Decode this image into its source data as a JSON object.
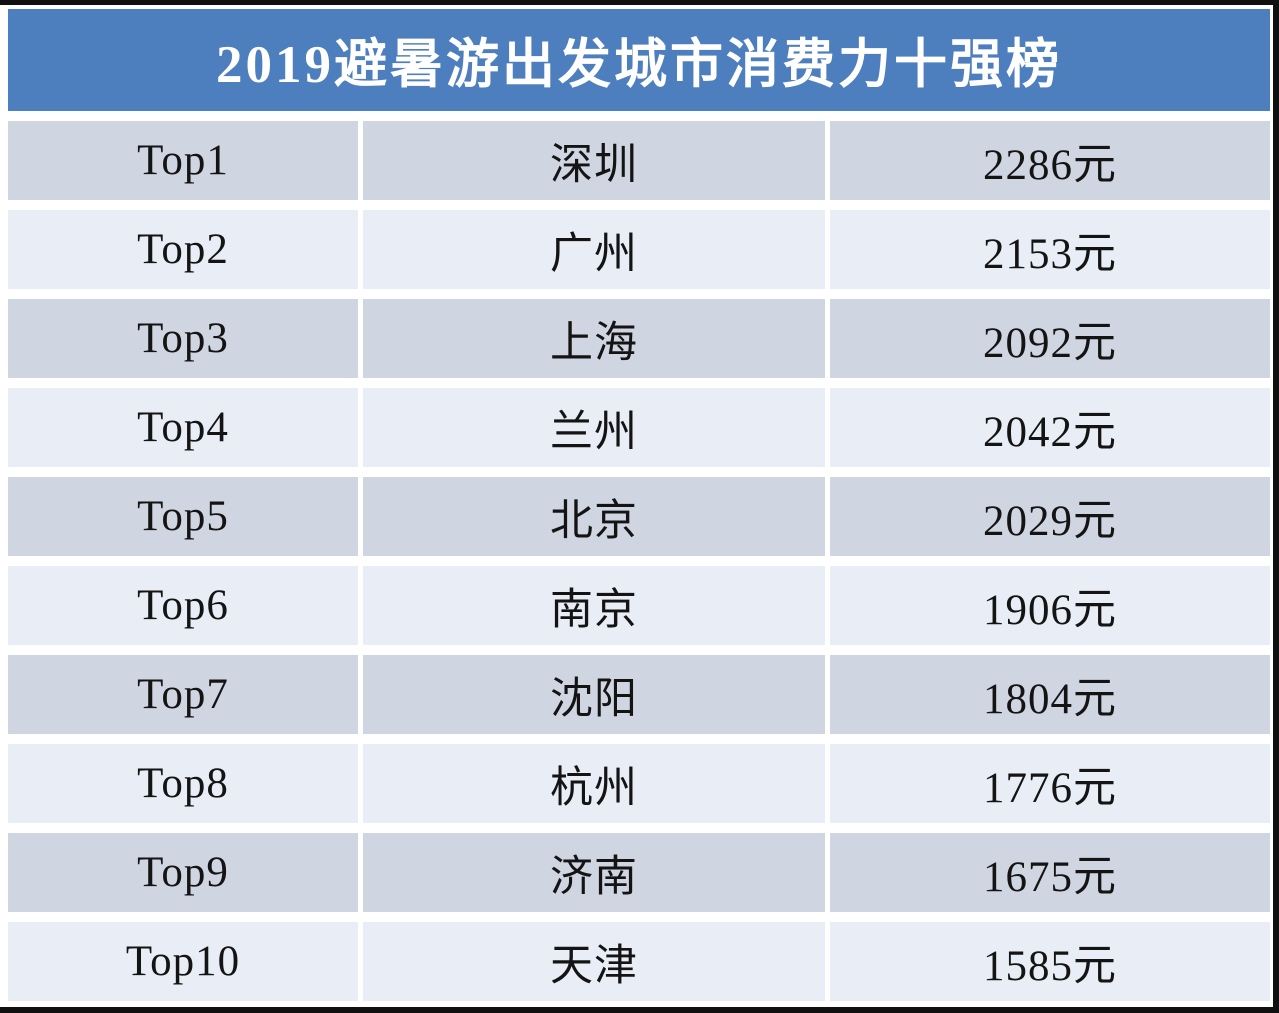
{
  "title": "2019避暑游出发城市消费力十强榜",
  "colors": {
    "header_bg": "#4d7ebd",
    "header_text": "#ffffff",
    "row_dark": "#d0d5e2",
    "row_light": "#e9edf5",
    "text": "#141414",
    "frame_border": "#101010"
  },
  "table": {
    "rows": [
      {
        "rank": "Top1",
        "city": "深圳",
        "price": "2286元"
      },
      {
        "rank": "Top2",
        "city": "广州",
        "price": "2153元"
      },
      {
        "rank": "Top3",
        "city": "上海",
        "price": "2092元"
      },
      {
        "rank": "Top4",
        "city": "兰州",
        "price": "2042元"
      },
      {
        "rank": "Top5",
        "city": "北京",
        "price": "2029元"
      },
      {
        "rank": "Top6",
        "city": "南京",
        "price": "1906元"
      },
      {
        "rank": "Top7",
        "city": "沈阳",
        "price": "1804元"
      },
      {
        "rank": "Top8",
        "city": "杭州",
        "price": "1776元"
      },
      {
        "rank": "Top9",
        "city": "济南",
        "price": "1675元"
      },
      {
        "rank": "Top10",
        "city": "天津",
        "price": "1585元"
      }
    ]
  },
  "chart_data": {
    "type": "table",
    "title": "2019避暑游出发城市消费力十强榜",
    "categories": [
      "深圳",
      "广州",
      "上海",
      "兰州",
      "北京",
      "南京",
      "沈阳",
      "杭州",
      "济南",
      "天津"
    ],
    "values": [
      2286,
      2153,
      2092,
      2042,
      2029,
      1906,
      1804,
      1776,
      1675,
      1585
    ],
    "unit": "元",
    "ranks": [
      "Top1",
      "Top2",
      "Top3",
      "Top4",
      "Top5",
      "Top6",
      "Top7",
      "Top8",
      "Top9",
      "Top10"
    ],
    "rows": [
      [
        "Top1",
        "深圳",
        "2286元"
      ],
      [
        "Top2",
        "广州",
        "2153元"
      ],
      [
        "Top3",
        "上海",
        "2092元"
      ],
      [
        "Top4",
        "兰州",
        "2042元"
      ],
      [
        "Top5",
        "北京",
        "2029元"
      ],
      [
        "Top6",
        "南京",
        "1906元"
      ],
      [
        "Top7",
        "沈阳",
        "1804元"
      ],
      [
        "Top8",
        "杭州",
        "1776元"
      ],
      [
        "Top9",
        "济南",
        "1675元"
      ],
      [
        "Top10",
        "天津",
        "1585元"
      ]
    ]
  }
}
